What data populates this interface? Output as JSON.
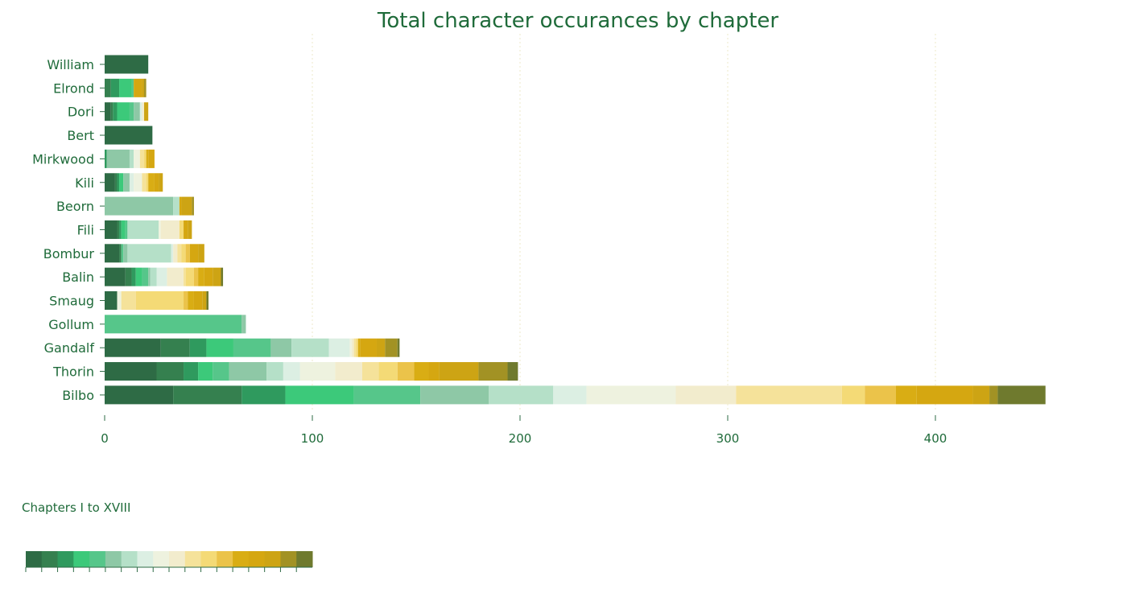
{
  "chart_data": {
    "type": "bar",
    "orientation": "horizontal",
    "stacked": true,
    "title": "Total character occurances by chapter",
    "categories": [
      "William",
      "Elrond",
      "Dori",
      "Bert",
      "Mirkwood",
      "Kili",
      "Beorn",
      "Fili",
      "Bombur",
      "Balin",
      "Smaug",
      "Gollum",
      "Gandalf",
      "Thorin",
      "Bilbo"
    ],
    "xticks": [
      0,
      100,
      200,
      300,
      400
    ],
    "xlim": [
      0,
      450
    ],
    "grid": true,
    "chapters": [
      "I",
      "II",
      "III",
      "IV",
      "V",
      "VI",
      "VII",
      "VIII",
      "IX",
      "X",
      "XI",
      "XII",
      "XIII",
      "XIV",
      "XV",
      "XVI",
      "XVII",
      "XVIII"
    ],
    "colors": [
      "#2e6b45",
      "#35804f",
      "#2f9a5e",
      "#3cc97a",
      "#56c68a",
      "#8ec8a6",
      "#b5e0c8",
      "#dcefe3",
      "#eef2df",
      "#f2eccd",
      "#f5e29a",
      "#f4da76",
      "#ebc34a",
      "#d9ad14",
      "#d5a711",
      "#cda414",
      "#a29224",
      "#6f7a2e"
    ],
    "series_values": {
      "William": [
        21,
        0,
        0,
        0,
        0,
        0,
        0,
        0,
        0,
        0,
        0,
        0,
        0,
        0,
        0,
        0,
        0,
        0
      ],
      "Elrond": [
        0,
        3,
        4,
        6,
        1,
        0,
        0,
        0,
        0,
        0,
        0,
        0,
        0,
        0,
        4,
        1,
        1,
        0
      ],
      "Dori": [
        3,
        1,
        2,
        6,
        2,
        3,
        0,
        1,
        0,
        1,
        0,
        0,
        0,
        0,
        0,
        2,
        0,
        0
      ],
      "Bert": [
        23,
        0,
        0,
        0,
        0,
        0,
        0,
        0,
        0,
        0,
        0,
        0,
        0,
        0,
        0,
        0,
        0,
        0
      ],
      "Mirkwood": [
        0,
        0,
        1,
        0,
        0,
        11,
        2,
        0,
        3,
        0,
        2,
        1,
        0,
        1,
        3,
        0,
        0,
        0
      ],
      "Kili": [
        5,
        1,
        1,
        2,
        0,
        3,
        0,
        2,
        4,
        0,
        2,
        1,
        0,
        3,
        2,
        2,
        0,
        0
      ],
      "Beorn": [
        0,
        0,
        0,
        0,
        0,
        33,
        3,
        0,
        0,
        0,
        0,
        0,
        0,
        0,
        1,
        5,
        1,
        0
      ],
      "Fili": [
        6,
        1,
        1,
        2,
        1,
        0,
        15,
        0,
        1,
        9,
        0,
        2,
        0,
        0,
        2,
        2,
        0,
        0
      ],
      "Bombur": [
        7,
        1,
        0,
        0,
        1,
        2,
        21,
        1,
        0,
        2,
        2,
        2,
        2,
        0,
        4,
        3,
        0,
        0
      ],
      "Balin": [
        10,
        3,
        2,
        3,
        3,
        1,
        3,
        5,
        0,
        8,
        1,
        4,
        2,
        3,
        4,
        4,
        0,
        1
      ],
      "Smaug": [
        6,
        0,
        0,
        0,
        0,
        0,
        0,
        0,
        2,
        0,
        7,
        23,
        2,
        3,
        4,
        2,
        0,
        1
      ],
      "Gollum": [
        0,
        0,
        0,
        0,
        66,
        2,
        0,
        0,
        0,
        0,
        0,
        0,
        0,
        0,
        0,
        0,
        0,
        0
      ],
      "Gandalf": [
        27,
        14,
        8,
        13,
        18,
        10,
        18,
        10,
        1,
        1,
        1,
        1,
        0,
        1,
        8,
        4,
        6,
        1
      ],
      "Thorin": [
        25,
        13,
        7,
        7,
        8,
        18,
        8,
        8,
        17,
        13,
        8,
        9,
        8,
        7,
        5,
        19,
        14,
        5
      ],
      "Bilbo": [
        33,
        33,
        21,
        33,
        32,
        33,
        31,
        16,
        43,
        29,
        51,
        11,
        15,
        10,
        27,
        8,
        4,
        23
      ]
    }
  }
}
